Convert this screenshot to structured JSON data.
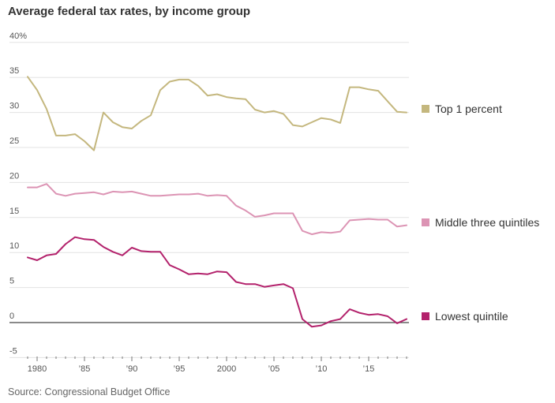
{
  "title": "Average federal tax rates, by income group",
  "source": "Source: Congressional Budget Office",
  "chart_data": {
    "type": "line",
    "title": "Average federal tax rates, by income group",
    "xlabel": "",
    "ylabel": "",
    "x": [
      1979,
      1980,
      1981,
      1982,
      1983,
      1984,
      1985,
      1986,
      1987,
      1988,
      1989,
      1990,
      1991,
      1992,
      1993,
      1994,
      1995,
      1996,
      1997,
      1998,
      1999,
      2000,
      2001,
      2002,
      2003,
      2004,
      2005,
      2006,
      2007,
      2008,
      2009,
      2010,
      2011,
      2012,
      2013,
      2014,
      2015,
      2016,
      2017,
      2018,
      2019
    ],
    "xlim": [
      1978.5,
      2019.5
    ],
    "ylim": [
      -5,
      40
    ],
    "yticks": [
      -5,
      0,
      5,
      10,
      15,
      20,
      25,
      30,
      35,
      40
    ],
    "ytick_labels": [
      "-5",
      "0",
      "5",
      "10",
      "15",
      "20",
      "25",
      "30",
      "35",
      "40%"
    ],
    "xticks": [
      1980,
      1985,
      1990,
      1995,
      2000,
      2005,
      2010,
      2015
    ],
    "xtick_labels": [
      "1980",
      "’85",
      "’90",
      "’95",
      "2000",
      "’05",
      "’10",
      "’15"
    ],
    "grid": true,
    "legend": "right",
    "series": [
      {
        "name": "Top 1 percent",
        "color": "#c4b77e",
        "values": [
          35.1,
          33.2,
          30.5,
          26.7,
          26.7,
          26.9,
          25.9,
          24.6,
          30.0,
          28.6,
          27.9,
          27.7,
          28.8,
          29.6,
          33.2,
          34.4,
          34.7,
          34.7,
          33.8,
          32.4,
          32.6,
          32.2,
          32.0,
          31.9,
          30.4,
          30.0,
          30.2,
          29.8,
          28.2,
          28.0,
          28.6,
          29.2,
          29.0,
          28.5,
          33.6,
          33.6,
          33.3,
          33.1,
          31.6,
          30.1,
          30.0
        ]
      },
      {
        "name": "Middle three quintiles",
        "color": "#dc94b4",
        "values": [
          19.3,
          19.3,
          19.8,
          18.4,
          18.1,
          18.4,
          18.5,
          18.6,
          18.3,
          18.7,
          18.6,
          18.7,
          18.4,
          18.1,
          18.1,
          18.2,
          18.3,
          18.3,
          18.4,
          18.1,
          18.2,
          18.1,
          16.7,
          16.0,
          15.1,
          15.3,
          15.6,
          15.6,
          15.6,
          13.1,
          12.6,
          12.9,
          12.8,
          13.0,
          14.6,
          14.7,
          14.8,
          14.7,
          14.7,
          13.7,
          13.9
        ]
      },
      {
        "name": "Lowest quintile",
        "color": "#b3226c",
        "values": [
          9.3,
          8.9,
          9.6,
          9.8,
          11.2,
          12.2,
          11.9,
          11.8,
          10.8,
          10.1,
          9.6,
          10.7,
          10.2,
          10.1,
          10.1,
          8.2,
          7.6,
          6.9,
          7.0,
          6.9,
          7.3,
          7.2,
          5.8,
          5.5,
          5.5,
          5.1,
          5.3,
          5.5,
          4.9,
          0.5,
          -0.6,
          -0.4,
          0.2,
          0.5,
          1.9,
          1.4,
          1.1,
          1.2,
          0.9,
          -0.1,
          0.5
        ]
      }
    ]
  }
}
